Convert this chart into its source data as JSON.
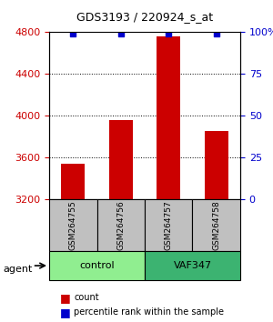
{
  "title": "GDS3193 / 220924_s_at",
  "samples": [
    "GSM264755",
    "GSM264756",
    "GSM264757",
    "GSM264758"
  ],
  "counts": [
    3540,
    3960,
    4760,
    3860
  ],
  "percentile_ranks": [
    99,
    99,
    99,
    99
  ],
  "groups": [
    "control",
    "control",
    "VAF347",
    "VAF347"
  ],
  "group_colors": [
    "#90EE90",
    "#90EE90",
    "#32CD32",
    "#32CD32"
  ],
  "bar_color": "#CC0000",
  "dot_color": "#0000CC",
  "ylim_left": [
    3200,
    4800
  ],
  "ylim_right": [
    0,
    100
  ],
  "yticks_left": [
    3200,
    3600,
    4000,
    4400,
    4800
  ],
  "yticks_right": [
    0,
    25,
    50,
    75,
    100
  ],
  "ylabel_left_color": "#CC0000",
  "ylabel_right_color": "#0000CC",
  "grid_yticks": [
    3600,
    4000,
    4400
  ],
  "legend_count_color": "#CC0000",
  "legend_dot_color": "#0000CC",
  "sample_box_color": "#C0C0C0",
  "agent_label": "agent",
  "group_label_control": "control",
  "group_label_vaf": "VAF347"
}
